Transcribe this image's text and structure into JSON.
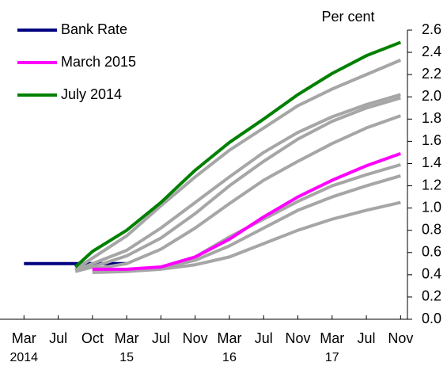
{
  "chart_data": {
    "type": "line",
    "y_label": "Per cent",
    "x": [
      0,
      1,
      1.5,
      2,
      3,
      4,
      5,
      6,
      7,
      8,
      9,
      10,
      11
    ],
    "xlim": [
      -0.7,
      11.2
    ],
    "xticks": [
      {
        "value": 0,
        "label": "Mar"
      },
      {
        "value": 1,
        "label": "Jul"
      },
      {
        "value": 2,
        "label": "Oct"
      },
      {
        "value": 3,
        "label": "Mar"
      },
      {
        "value": 4,
        "label": "Jul"
      },
      {
        "value": 5,
        "label": "Nov"
      },
      {
        "value": 6,
        "label": "Mar"
      },
      {
        "value": 7,
        "label": "Jul"
      },
      {
        "value": 8,
        "label": "Nov"
      },
      {
        "value": 9,
        "label": "Mar"
      },
      {
        "value": 10,
        "label": "Jul"
      },
      {
        "value": 11,
        "label": "Nov"
      }
    ],
    "year_ticks": [
      {
        "value": 0,
        "label": "2014"
      },
      {
        "value": 3,
        "label": "15"
      },
      {
        "value": 6,
        "label": "16"
      },
      {
        "value": 9,
        "label": "17"
      }
    ],
    "ylim": [
      0,
      2.6
    ],
    "yticks": [
      {
        "value": 0,
        "label": "0.0"
      },
      0.2,
      0.4,
      0.6,
      0.8,
      {
        "value": 1,
        "label": "1.0"
      },
      1.2,
      1.4,
      1.6,
      1.8,
      {
        "value": 2,
        "label": "2.0"
      },
      2.2,
      2.4,
      2.6
    ],
    "series": [
      {
        "name": "Bank Rate",
        "color": "#000080",
        "values": [
          0.5,
          0.5,
          0.5,
          0.5,
          0.5,
          null,
          null,
          null,
          null,
          null,
          null,
          null,
          null
        ]
      },
      {
        "color": "#a6a6a6",
        "values": [
          null,
          null,
          0.45,
          0.55,
          0.75,
          1.02,
          1.28,
          1.52,
          1.72,
          1.92,
          2.07,
          2.2,
          2.33
        ]
      },
      {
        "color": "#a6a6a6",
        "values": [
          null,
          null,
          0.44,
          0.5,
          0.62,
          0.82,
          1.05,
          1.28,
          1.5,
          1.68,
          1.82,
          1.93,
          2.02
        ]
      },
      {
        "color": "#a6a6a6",
        "values": [
          null,
          null,
          0.43,
          0.47,
          0.57,
          0.73,
          0.95,
          1.2,
          1.42,
          1.62,
          1.78,
          1.9,
          1.99
        ]
      },
      {
        "color": "#a6a6a6",
        "values": [
          null,
          null,
          null,
          0.45,
          0.5,
          0.63,
          0.82,
          1.04,
          1.25,
          1.42,
          1.58,
          1.72,
          1.83
        ]
      },
      {
        "color": "#a6a6a6",
        "values": [
          null,
          null,
          null,
          0.43,
          0.44,
          0.47,
          0.56,
          0.74,
          0.9,
          1.06,
          1.2,
          1.3,
          1.39
        ]
      },
      {
        "color": "#a6a6a6",
        "values": [
          null,
          null,
          null,
          0.43,
          0.44,
          0.46,
          0.53,
          0.66,
          0.82,
          0.98,
          1.1,
          1.2,
          1.29
        ]
      },
      {
        "color": "#a6a6a6",
        "values": [
          null,
          null,
          null,
          0.42,
          0.43,
          0.45,
          0.49,
          0.56,
          0.68,
          0.8,
          0.9,
          0.98,
          1.05
        ]
      },
      {
        "name": "March 2015",
        "color": "#ff00ff",
        "values": [
          null,
          null,
          null,
          0.45,
          0.45,
          0.47,
          0.56,
          0.72,
          0.92,
          1.1,
          1.25,
          1.38,
          1.49
        ]
      },
      {
        "name": "July 2014",
        "color": "#008000",
        "values": [
          null,
          null,
          0.47,
          0.61,
          0.8,
          1.05,
          1.34,
          1.59,
          1.8,
          2.02,
          2.21,
          2.37,
          2.49
        ]
      }
    ]
  }
}
